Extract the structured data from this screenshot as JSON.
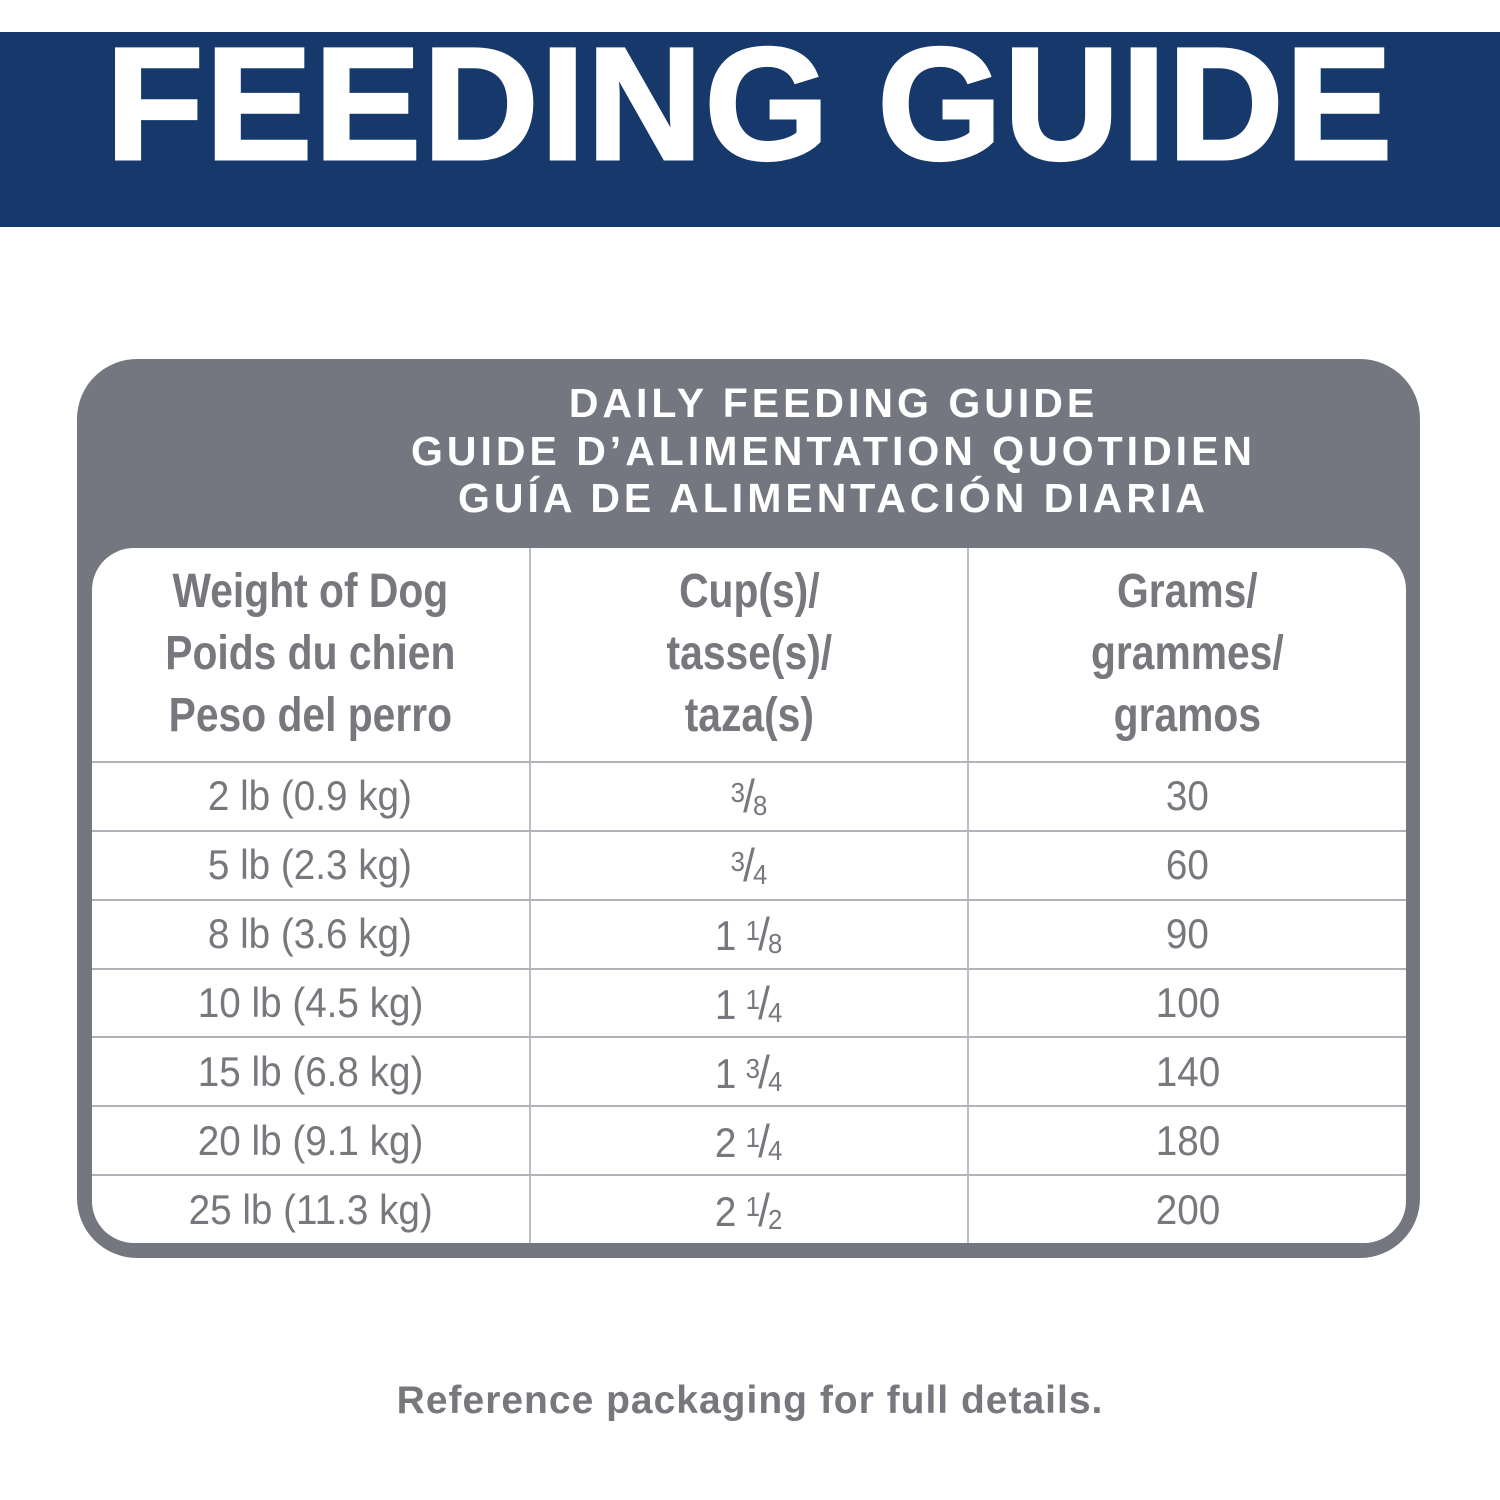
{
  "banner": {
    "title": "FEEDING GUIDE",
    "bg_color": "#17386B",
    "text_color": "#FFFFFF"
  },
  "panel": {
    "bg_color": "#74777F",
    "title_lines": [
      "DAILY FEEDING GUIDE",
      "GUIDE D’ALIMENTATION QUOTIDIEN",
      "GUÍA DE ALIMENTACIÓN DIARIA"
    ]
  },
  "table": {
    "text_color": "#77787E",
    "columns": [
      {
        "lines": [
          "Weight of Dog",
          "Poids du chien",
          "Peso del perro"
        ]
      },
      {
        "lines": [
          "Cup(s)/",
          "tasse(s)/",
          "taza(s)"
        ]
      },
      {
        "lines": [
          "Grams/",
          "grammes/",
          "gramos"
        ]
      }
    ],
    "rows": [
      {
        "weight": "2 lb (0.9 kg)",
        "cups": "3/8",
        "grams": "30"
      },
      {
        "weight": "5 lb (2.3 kg)",
        "cups": "3/4",
        "grams": "60"
      },
      {
        "weight": "8 lb (3.6 kg)",
        "cups": "1 1/8",
        "grams": "90"
      },
      {
        "weight": "10 lb (4.5 kg)",
        "cups": "1 1/4",
        "grams": "100"
      },
      {
        "weight": "15 lb (6.8 kg)",
        "cups": "1 3/4",
        "grams": "140"
      },
      {
        "weight": "20 lb (9.1 kg)",
        "cups": "2 1/4",
        "grams": "180"
      },
      {
        "weight": "25 lb (11.3 kg)",
        "cups": "2 1/2",
        "grams": "200"
      }
    ]
  },
  "footer": {
    "note": "Reference packaging for full details."
  }
}
